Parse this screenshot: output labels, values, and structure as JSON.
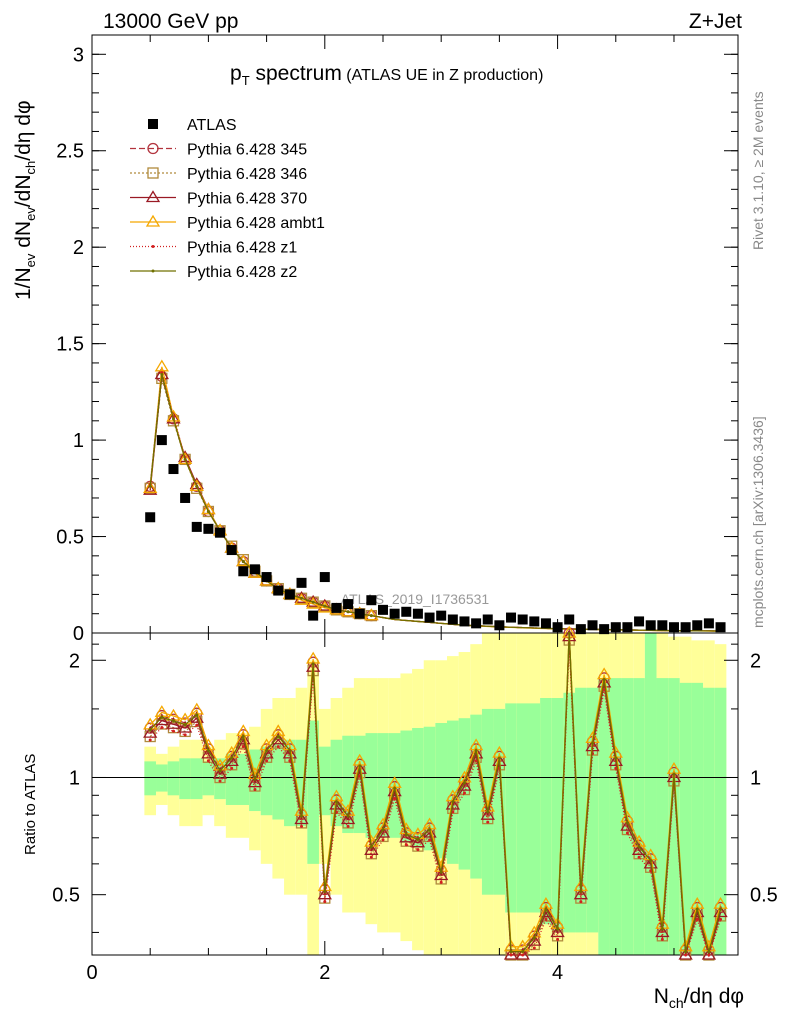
{
  "header": {
    "left": "13000 GeV pp",
    "right": "Z+Jet"
  },
  "title": {
    "main": "p",
    "sub": "T",
    "rest": " spectrum",
    "small": " (ATLAS UE in Z production)"
  },
  "side_labels": {
    "rivet": "Rivet 3.1.10, ≥ 2M events",
    "mcplots": "mcplots.cern.ch [arXiv:1306.3436]"
  },
  "watermark": "ATLAS_2019_I1736531",
  "axes": {
    "ylabel_top": "1/N_ev dN_ev/dN_ch/dη dφ",
    "ylabel_ratio": "Ratio to ATLAS",
    "xlabel": "N_ch/dη dφ",
    "top_yticks": [
      "0",
      "0.5",
      "1",
      "1.5",
      "2",
      "2.5",
      "3"
    ],
    "ratio_yticks": [
      "0.5",
      "1",
      "2"
    ],
    "xticks": [
      "0",
      "2",
      "4"
    ]
  },
  "colors": {
    "data": "#000000",
    "p345": "#b2333d",
    "p346": "#b08a3c",
    "p370": "#9a1a24",
    "ambt1": "#f5a800",
    "z1": "#d22020",
    "z2": "#707000",
    "band_green": "#99ff99",
    "band_yellow": "#ffff99"
  },
  "chart_data": {
    "type": "scatter",
    "title": "p_T spectrum (ATLAS UE in Z production)",
    "xlabel": "N_ch/dη dφ",
    "ylabel": "1/N_ev dN_ev/dN_ch/dη dφ",
    "xlim": [
      0,
      5.55
    ],
    "ylim": [
      0,
      3.1
    ],
    "ratio_ylim": [
      0.35,
      2.35
    ],
    "x": [
      0.5,
      0.6,
      0.7,
      0.8,
      0.9,
      1.0,
      1.1,
      1.2,
      1.3,
      1.4,
      1.5,
      1.6,
      1.7,
      1.8,
      1.9,
      2.0,
      2.1,
      2.2,
      2.3,
      2.4,
      2.5,
      2.6,
      2.7,
      2.8,
      2.9,
      3.0,
      3.1,
      3.2,
      3.3,
      3.4,
      3.5,
      3.6,
      3.7,
      3.8,
      3.9,
      4.0,
      4.1,
      4.2,
      4.3,
      4.4,
      4.5,
      4.6,
      4.7,
      4.8,
      4.9,
      5.0,
      5.1,
      5.2,
      5.3,
      5.4
    ],
    "series": [
      {
        "name": "ATLAS",
        "marker": "square",
        "values": [
          0.6,
          1.0,
          0.85,
          0.7,
          0.55,
          0.54,
          0.52,
          0.43,
          0.32,
          0.33,
          0.29,
          0.22,
          0.2,
          0.26,
          0.09,
          0.29,
          0.13,
          0.15,
          0.1,
          0.17,
          0.12,
          0.1,
          0.11,
          0.1,
          0.08,
          0.09,
          0.07,
          0.06,
          0.05,
          0.07,
          0.04,
          0.08,
          0.07,
          0.06,
          0.05,
          0.03,
          0.07,
          0.02,
          0.04,
          0.02,
          0.03,
          0.03,
          0.06,
          0.04,
          0.04,
          0.03,
          0.03,
          0.04,
          0.05,
          0.03
        ]
      },
      {
        "name": "Pythia 6.428 345",
        "marker": "circle-open",
        "dash": "6,3",
        "values": [
          0.76,
          1.33,
          1.11,
          0.9,
          0.76,
          0.63,
          0.53,
          0.44,
          0.37,
          0.32,
          0.27,
          0.23,
          0.2,
          0.18,
          0.16,
          0.14,
          0.12,
          0.11,
          0.1,
          0.09,
          0.08,
          0.07,
          0.065,
          0.06,
          0.055,
          0.05,
          0.045,
          0.04,
          0.038,
          0.035,
          0.032,
          0.03,
          0.028,
          0.026,
          0.024,
          0.022,
          0.021,
          0.02,
          0.019,
          0.018,
          0.017,
          0.016,
          0.015,
          0.014,
          0.013,
          0.012,
          0.012,
          0.011,
          0.011,
          0.01
        ]
      },
      {
        "name": "Pythia 6.428 346",
        "marker": "square-open",
        "dash": "2,2",
        "values": [
          0.75,
          1.32,
          1.1,
          0.9,
          0.75,
          0.63,
          0.53,
          0.45,
          0.38,
          0.32,
          0.27,
          0.23,
          0.2,
          0.18,
          0.16,
          0.14,
          0.12,
          0.11,
          0.1,
          0.09,
          0.08,
          0.07,
          0.065,
          0.06,
          0.055,
          0.05,
          0.045,
          0.04,
          0.038,
          0.035,
          0.032,
          0.03,
          0.028,
          0.026,
          0.024,
          0.022,
          0.021,
          0.02,
          0.019,
          0.018,
          0.017,
          0.016,
          0.015,
          0.014,
          0.013,
          0.012,
          0.012,
          0.011,
          0.011,
          0.01
        ]
      },
      {
        "name": "Pythia 6.428 370",
        "marker": "triangle-open",
        "dash": "",
        "values": [
          0.74,
          1.34,
          1.11,
          0.91,
          0.77,
          0.64,
          0.53,
          0.44,
          0.37,
          0.31,
          0.27,
          0.23,
          0.2,
          0.18,
          0.16,
          0.14,
          0.12,
          0.11,
          0.1,
          0.09,
          0.08,
          0.07,
          0.065,
          0.06,
          0.055,
          0.05,
          0.045,
          0.04,
          0.038,
          0.035,
          0.032,
          0.03,
          0.028,
          0.026,
          0.024,
          0.022,
          0.021,
          0.02,
          0.019,
          0.018,
          0.017,
          0.016,
          0.015,
          0.014,
          0.013,
          0.012,
          0.012,
          0.011,
          0.011,
          0.01
        ]
      },
      {
        "name": "Pythia 6.428 ambt1",
        "marker": "triangle-open",
        "dash": "",
        "values": [
          0.75,
          1.38,
          1.12,
          0.9,
          0.76,
          0.64,
          0.53,
          0.44,
          0.37,
          0.31,
          0.27,
          0.23,
          0.2,
          0.17,
          0.15,
          0.13,
          0.12,
          0.11,
          0.1,
          0.09,
          0.08,
          0.07,
          0.065,
          0.06,
          0.055,
          0.05,
          0.045,
          0.04,
          0.037,
          0.034,
          0.031,
          0.029,
          0.027,
          0.025,
          0.023,
          0.021,
          0.02,
          0.019,
          0.018,
          0.017,
          0.016,
          0.015,
          0.014,
          0.013,
          0.012,
          0.012,
          0.011,
          0.011,
          0.01,
          0.01
        ]
      },
      {
        "name": "Pythia 6.428 z1",
        "marker": "dot",
        "dash": "1,2",
        "values": [
          0.77,
          1.35,
          1.12,
          0.91,
          0.76,
          0.63,
          0.53,
          0.44,
          0.37,
          0.32,
          0.27,
          0.23,
          0.2,
          0.18,
          0.16,
          0.14,
          0.12,
          0.11,
          0.1,
          0.09,
          0.08,
          0.07,
          0.065,
          0.06,
          0.055,
          0.05,
          0.045,
          0.04,
          0.038,
          0.035,
          0.032,
          0.03,
          0.028,
          0.026,
          0.024,
          0.022,
          0.021,
          0.02,
          0.019,
          0.018,
          0.017,
          0.016,
          0.015,
          0.014,
          0.013,
          0.012,
          0.012,
          0.011,
          0.011,
          0.01
        ]
      },
      {
        "name": "Pythia 6.428 z2",
        "marker": "dot",
        "dash": "",
        "values": [
          0.76,
          1.34,
          1.11,
          0.9,
          0.76,
          0.63,
          0.53,
          0.44,
          0.37,
          0.32,
          0.27,
          0.23,
          0.2,
          0.18,
          0.16,
          0.14,
          0.12,
          0.11,
          0.1,
          0.09,
          0.08,
          0.07,
          0.065,
          0.06,
          0.055,
          0.05,
          0.045,
          0.04,
          0.038,
          0.035,
          0.032,
          0.03,
          0.028,
          0.026,
          0.024,
          0.022,
          0.021,
          0.02,
          0.019,
          0.018,
          0.017,
          0.016,
          0.015,
          0.014,
          0.013,
          0.012,
          0.012,
          0.011,
          0.011,
          0.01
        ]
      }
    ],
    "ratio": {
      "ylabel": "Ratio to ATLAS",
      "values": [
        1.3,
        1.4,
        1.37,
        1.34,
        1.42,
        1.15,
        1.02,
        1.1,
        1.25,
        0.97,
        1.15,
        1.25,
        1.15,
        0.78,
        1.92,
        0.5,
        0.85,
        0.78,
        1.05,
        0.65,
        0.72,
        0.92,
        0.7,
        0.68,
        0.72,
        0.56,
        0.85,
        0.95,
        1.15,
        0.8,
        1.1,
        0.35,
        0.35,
        0.38,
        0.45,
        0.4,
        2.3,
        0.5,
        1.2,
        1.75,
        1.1,
        0.75,
        0.65,
        0.6,
        0.4,
        1.0,
        0.35,
        0.45,
        0.35,
        0.45
      ],
      "band_green": [
        [
          0.9,
          1.1
        ],
        [
          0.92,
          1.08
        ],
        [
          0.9,
          1.1
        ],
        [
          0.88,
          1.12
        ],
        [
          0.88,
          1.12
        ],
        [
          0.9,
          1.1
        ],
        [
          0.88,
          1.12
        ],
        [
          0.85,
          1.15
        ],
        [
          0.85,
          1.15
        ],
        [
          0.82,
          1.18
        ],
        [
          0.8,
          1.2
        ],
        [
          0.78,
          1.22
        ],
        [
          0.75,
          1.25
        ],
        [
          0.75,
          1.25
        ],
        [
          0.6,
          1.4
        ],
        [
          0.8,
          1.2
        ],
        [
          0.75,
          1.25
        ],
        [
          0.72,
          1.28
        ],
        [
          0.72,
          1.28
        ],
        [
          0.7,
          1.3
        ],
        [
          0.7,
          1.3
        ],
        [
          0.7,
          1.3
        ],
        [
          0.68,
          1.32
        ],
        [
          0.66,
          1.34
        ],
        [
          0.65,
          1.35
        ],
        [
          0.62,
          1.38
        ],
        [
          0.6,
          1.4
        ],
        [
          0.58,
          1.42
        ],
        [
          0.55,
          1.45
        ],
        [
          0.5,
          1.5
        ],
        [
          0.5,
          1.5
        ],
        [
          0.45,
          1.55
        ],
        [
          0.45,
          1.55
        ],
        [
          0.45,
          1.55
        ],
        [
          0.42,
          1.6
        ],
        [
          0.4,
          1.6
        ],
        [
          0.4,
          1.65
        ],
        [
          0.4,
          1.7
        ],
        [
          0.4,
          1.7
        ],
        [
          0.35,
          1.8
        ],
        [
          0.35,
          1.8
        ],
        [
          0.35,
          1.8
        ],
        [
          0.35,
          1.8
        ],
        [
          0.35,
          2.35
        ],
        [
          0.35,
          1.8
        ],
        [
          0.35,
          1.8
        ],
        [
          0.35,
          1.75
        ],
        [
          0.35,
          1.75
        ],
        [
          0.35,
          1.7
        ],
        [
          0.35,
          1.7
        ]
      ],
      "band_yellow": [
        [
          0.8,
          1.2
        ],
        [
          0.85,
          1.15
        ],
        [
          0.8,
          1.2
        ],
        [
          0.75,
          1.25
        ],
        [
          0.75,
          1.25
        ],
        [
          0.8,
          1.2
        ],
        [
          0.75,
          1.25
        ],
        [
          0.7,
          1.3
        ],
        [
          0.7,
          1.3
        ],
        [
          0.65,
          1.35
        ],
        [
          0.6,
          1.5
        ],
        [
          0.55,
          1.6
        ],
        [
          0.5,
          1.6
        ],
        [
          0.5,
          1.7
        ],
        [
          0.35,
          2.0
        ],
        [
          0.6,
          1.5
        ],
        [
          0.5,
          1.6
        ],
        [
          0.45,
          1.7
        ],
        [
          0.45,
          1.8
        ],
        [
          0.42,
          1.8
        ],
        [
          0.4,
          1.8
        ],
        [
          0.4,
          1.8
        ],
        [
          0.38,
          1.85
        ],
        [
          0.36,
          1.9
        ],
        [
          0.35,
          2.0
        ],
        [
          0.35,
          2.0
        ],
        [
          0.35,
          2.05
        ],
        [
          0.35,
          2.1
        ],
        [
          0.35,
          2.2
        ],
        [
          0.35,
          2.35
        ],
        [
          0.35,
          2.35
        ],
        [
          0.35,
          2.35
        ],
        [
          0.35,
          2.35
        ],
        [
          0.35,
          2.35
        ],
        [
          0.35,
          2.35
        ],
        [
          0.35,
          2.35
        ],
        [
          0.35,
          2.35
        ],
        [
          0.35,
          2.35
        ],
        [
          0.35,
          2.35
        ],
        [
          0.35,
          2.35
        ],
        [
          0.35,
          2.35
        ],
        [
          0.35,
          2.35
        ],
        [
          0.35,
          2.35
        ],
        [
          0.35,
          2.35
        ],
        [
          0.35,
          2.35
        ],
        [
          0.35,
          2.3
        ],
        [
          0.35,
          2.3
        ],
        [
          0.35,
          2.25
        ],
        [
          0.35,
          2.25
        ],
        [
          0.35,
          2.2
        ]
      ]
    }
  }
}
